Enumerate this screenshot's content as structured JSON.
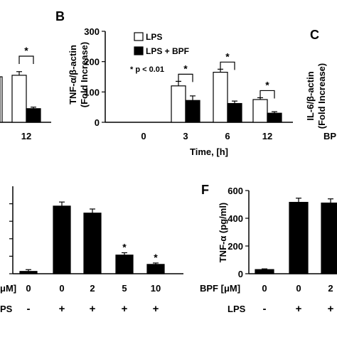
{
  "panels": {
    "A": {
      "label": "",
      "x_ticks": [
        "12"
      ],
      "sig_mark": "*"
    },
    "B": {
      "label": "B",
      "ylabel_line1": "TNF-α/β-actin",
      "ylabel_line2": "(Fold Increase)",
      "xlabel": "Time, [h]",
      "pvalue": "* p < 0.01",
      "sig_mark": "*"
    },
    "C": {
      "label": "C",
      "ylabel_line1": "IL-6/β-actin",
      "ylabel_line2": "(Fold Increase)",
      "bpf_label": "BP"
    },
    "E": {
      "label": "",
      "row1_label": "μM]",
      "row2_label": "PS",
      "sig_mark": "*"
    },
    "F": {
      "label": "F",
      "ylabel": "TNF-α (pg/ml)",
      "row1_label": "BPF [μM]",
      "row2_label": "LPS"
    }
  },
  "chart_data": [
    {
      "panel": "A",
      "type": "bar",
      "categories": [
        "12"
      ],
      "series": [
        {
          "name": "LPS",
          "values": [
            155
          ]
        },
        {
          "name": "LPS + BPF",
          "values": [
            45
          ]
        }
      ],
      "errors": [
        [
          12
        ],
        [
          5
        ]
      ],
      "ylim": [
        0,
        300
      ],
      "significant": [
        true
      ]
    },
    {
      "panel": "B",
      "type": "bar",
      "title": "",
      "xlabel": "Time, [h]",
      "ylabel": "TNF-α/β-actin (Fold Increase)",
      "categories": [
        "0",
        "3",
        "6",
        "12"
      ],
      "series": [
        {
          "name": "LPS",
          "values": [
            0,
            120,
            165,
            75
          ]
        },
        {
          "name": "LPS + BPF",
          "values": [
            0,
            72,
            62,
            30
          ]
        }
      ],
      "errors": [
        [
          0,
          15,
          10,
          6
        ],
        [
          0,
          15,
          8,
          5
        ]
      ],
      "ylim": [
        0,
        300
      ],
      "yticks": [
        "0",
        "100",
        "200",
        "300"
      ],
      "significant": [
        false,
        true,
        true,
        true
      ],
      "legend_position": "top-left",
      "annotation": "* p < 0.01"
    },
    {
      "panel": "E",
      "type": "bar",
      "categories": [
        "0",
        "0",
        "2",
        "5",
        "10"
      ],
      "row1": [
        "0",
        "0",
        "2",
        "5",
        "10"
      ],
      "row2": [
        "-",
        "+",
        "+",
        "+",
        "+"
      ],
      "values": [
        0.02,
        0.58,
        0.52,
        0.16,
        0.08
      ],
      "errors": [
        0.015,
        0.035,
        0.035,
        0.02,
        0.012
      ],
      "ylim": [
        0,
        0.75
      ],
      "significant": [
        false,
        false,
        false,
        true,
        true
      ]
    },
    {
      "panel": "F",
      "type": "bar",
      "ylabel": "TNF-α (pg/ml)",
      "row1": [
        "0",
        "0",
        "2"
      ],
      "row2": [
        "-",
        "+",
        "+"
      ],
      "values": [
        30,
        515,
        510
      ],
      "errors": [
        5,
        30,
        30
      ],
      "ylim": [
        0,
        600
      ],
      "yticks": [
        "0",
        "200",
        "400",
        "600"
      ]
    }
  ]
}
